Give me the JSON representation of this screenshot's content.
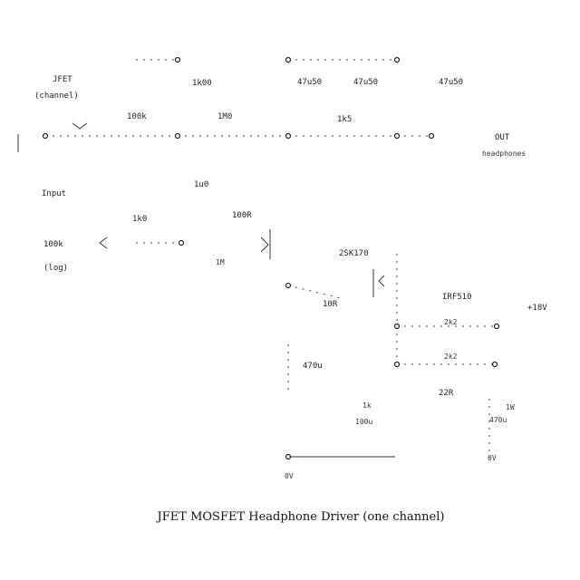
{
  "title": "JFET MOSFET Headphone Driver (one channel)",
  "labels": {
    "in_channel_1": "JFET",
    "in_channel_2": "(channel)",
    "r_top_left": "100k",
    "r_top_mid": "1k00",
    "r_top_right": "1M0",
    "cap_top_1": "47u50",
    "cap_top_2": "47u50",
    "cap_top_3": "47u50",
    "r_mid": "1k5",
    "cap_left": "1u0",
    "out_1": "OUT",
    "out_2": "headphones",
    "in_label": "Input",
    "pot": "100k",
    "pot2": "(log)",
    "r_gate": "1k0",
    "r_bias": "100R",
    "jfet": "2SK170",
    "r_small": "1M",
    "mosfet": "IRF510",
    "r_source": "10R",
    "cap_out": "470u",
    "r_out_1": "2k2",
    "r_out_2": "2k2",
    "r_load": "22R",
    "r_load2": "1W",
    "supply": "+18V",
    "supply2": "0V",
    "r_low": "1k",
    "cap_low": "100u",
    "cap_right": "470u",
    "gnd_label": "0V"
  }
}
